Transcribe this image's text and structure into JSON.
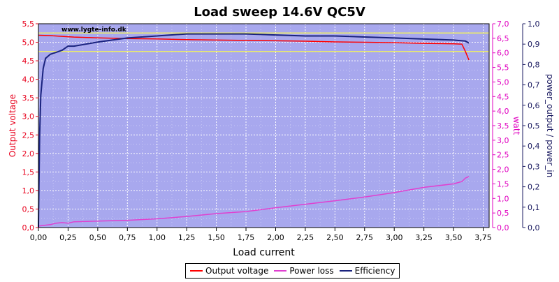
{
  "chart_data": {
    "type": "line",
    "title": "Load sweep 14.6V QC5V",
    "watermark": "www.lygte-info.dk",
    "xlabel": "Load current",
    "xlim": [
      0,
      3.8
    ],
    "x_ticks": [
      "0,00",
      "0,25",
      "0,50",
      "0,75",
      "1,00",
      "1,25",
      "1,50",
      "1,75",
      "2,00",
      "2,25",
      "2,50",
      "2,75",
      "3,00",
      "3,25",
      "3,50",
      "3,75"
    ],
    "y_left": {
      "label": "Output voltage",
      "lim": [
        0,
        5.5
      ],
      "ticks": [
        "0,0",
        "0,5",
        "1,0",
        "1,5",
        "2,0",
        "2,5",
        "3,0",
        "3,5",
        "4,0",
        "4,5",
        "5,0",
        "5,5"
      ],
      "color": "#e8001c"
    },
    "y_right1": {
      "label": "watt",
      "lim": [
        0,
        7.0
      ],
      "ticks": [
        "0,0",
        "0,5",
        "1,0",
        "1,5",
        "2,0",
        "2,5",
        "3,0",
        "3,5",
        "4,0",
        "4,5",
        "5,0",
        "5,5",
        "6,0",
        "6,5",
        "7,0"
      ],
      "color": "#e000c0"
    },
    "y_right2": {
      "label": "power_output / power_in",
      "lim": [
        0,
        1.0
      ],
      "ticks": [
        "0,0",
        "0,1",
        "0,2",
        "0,3",
        "0,4",
        "0,5",
        "0,6",
        "0,7",
        "0,8",
        "0,9",
        "1,0"
      ],
      "color": "#1a1a60"
    },
    "reference_lines": [
      5.25,
      4.75
    ],
    "grid": true,
    "legend_position": "bottom-center",
    "series": [
      {
        "name": "Output voltage",
        "axis": "left",
        "color": "#ff0000",
        "x": [
          0.0,
          0.1,
          0.2,
          0.3,
          0.5,
          0.75,
          1.0,
          1.25,
          1.5,
          1.75,
          2.0,
          2.25,
          2.5,
          2.75,
          3.0,
          3.25,
          3.5,
          3.57,
          3.6,
          3.63
        ],
        "y": [
          5.19,
          5.18,
          5.16,
          5.14,
          5.12,
          5.1,
          5.09,
          5.07,
          5.06,
          5.05,
          5.04,
          5.03,
          5.01,
          5.0,
          4.99,
          4.97,
          4.96,
          4.95,
          4.75,
          4.52
        ]
      },
      {
        "name": "Power loss",
        "axis": "right1",
        "color": "#e040d0",
        "x": [
          0.0,
          0.1,
          0.15,
          0.2,
          0.25,
          0.3,
          0.5,
          0.75,
          1.0,
          1.25,
          1.5,
          1.75,
          2.0,
          2.25,
          2.5,
          2.75,
          3.0,
          3.25,
          3.5,
          3.57,
          3.6,
          3.63
        ],
        "y": [
          0.05,
          0.1,
          0.15,
          0.17,
          0.15,
          0.2,
          0.22,
          0.25,
          0.3,
          0.38,
          0.48,
          0.55,
          0.68,
          0.8,
          0.92,
          1.05,
          1.2,
          1.38,
          1.5,
          1.58,
          1.7,
          1.75
        ]
      },
      {
        "name": "Efficiency",
        "axis": "right2",
        "color": "#1a237e",
        "x": [
          0.0,
          0.01,
          0.02,
          0.04,
          0.06,
          0.1,
          0.15,
          0.2,
          0.25,
          0.3,
          0.4,
          0.5,
          0.75,
          1.0,
          1.25,
          1.5,
          1.75,
          2.0,
          2.25,
          2.5,
          2.75,
          3.0,
          3.25,
          3.5,
          3.6,
          3.63
        ],
        "y": [
          0.0,
          0.45,
          0.65,
          0.78,
          0.83,
          0.85,
          0.86,
          0.87,
          0.89,
          0.89,
          0.9,
          0.91,
          0.93,
          0.94,
          0.95,
          0.95,
          0.95,
          0.945,
          0.94,
          0.94,
          0.935,
          0.93,
          0.925,
          0.92,
          0.915,
          0.905
        ]
      }
    ]
  }
}
